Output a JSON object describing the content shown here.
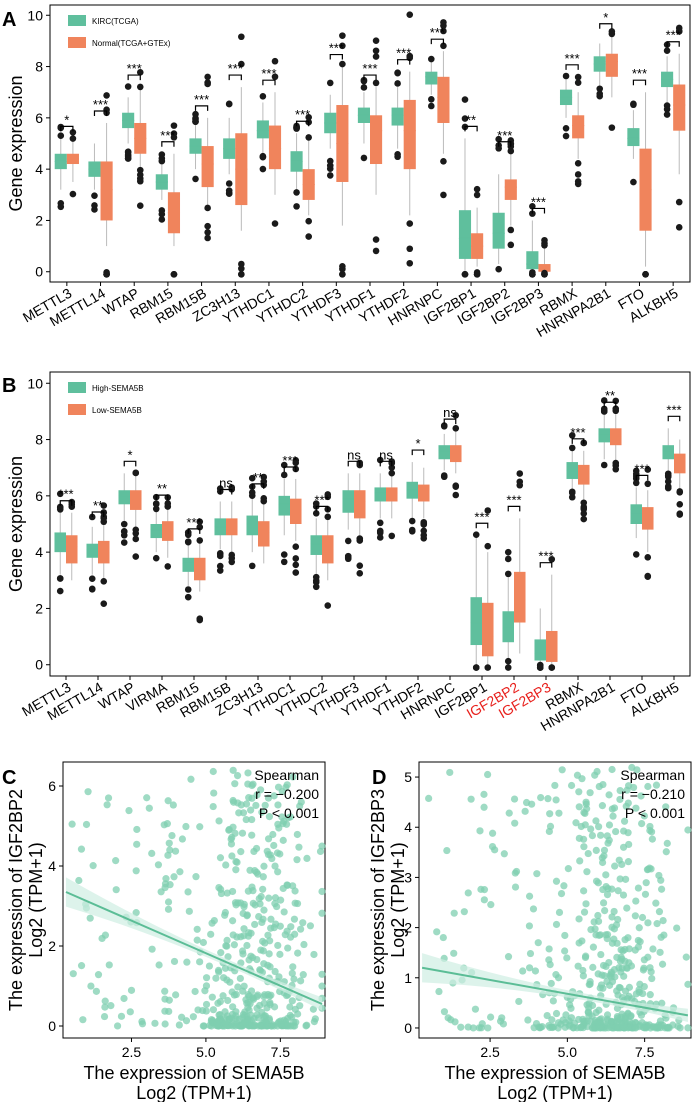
{
  "colors": {
    "green": "#5fbf9d",
    "orange": "#f0845c",
    "scatter": "#7fcfb0",
    "line": "#5bbd96",
    "band": "#cfeee2",
    "red_label": "#e8201c",
    "point": "#1a1a1a"
  },
  "chart_data": [
    {
      "panel": "A",
      "type": "box",
      "ylabel": "Gene expression",
      "ylim": [
        -0.4,
        10.4
      ],
      "yticks": [
        "0",
        "2",
        "4",
        "6",
        "8",
        "10"
      ],
      "legend": [
        "KIRC(TCGA)",
        "Normal(TCGA+GTEx)"
      ],
      "categories": [
        "METTL3",
        "METTL14",
        "WTAP",
        "RBM15",
        "RBM15B",
        "ZC3H13",
        "YTHDC1",
        "YTHDC2",
        "YTHDF3",
        "YTHDF1",
        "YTHDF2",
        "HNRNPC",
        "IGF2BP1",
        "IGF2BP2",
        "IGF2BP3",
        "RBMX",
        "HNRNPA2B1",
        "FTO",
        "ALKBH5"
      ],
      "significance": [
        "*",
        "***",
        "***",
        "***",
        "***",
        "***",
        "***",
        "***",
        "***",
        "***",
        "***",
        "***",
        "**",
        "***",
        "***",
        "***",
        "*",
        "***",
        "***"
      ],
      "series": [
        {
          "name": "KIRC(TCGA)",
          "boxes": [
            [
              3.2,
              4.0,
              4.3,
              4.6,
              5.2
            ],
            [
              3.2,
              3.7,
              4.0,
              4.3,
              5.0
            ],
            [
              5.0,
              5.6,
              5.9,
              6.2,
              6.8
            ],
            [
              2.8,
              3.2,
              3.5,
              3.8,
              4.3
            ],
            [
              4.0,
              4.6,
              4.9,
              5.2,
              5.8
            ],
            [
              3.8,
              4.4,
              4.8,
              5.2,
              6.0
            ],
            [
              4.6,
              5.2,
              5.5,
              5.9,
              6.6
            ],
            [
              3.2,
              3.9,
              4.3,
              4.7,
              5.4
            ],
            [
              4.8,
              5.4,
              5.8,
              6.2,
              6.9
            ],
            [
              5.0,
              5.8,
              6.1,
              6.4,
              7.0
            ],
            [
              4.8,
              5.7,
              6.1,
              6.4,
              7.2
            ],
            [
              6.9,
              7.3,
              7.6,
              7.8,
              8.2
            ],
            [
              0.0,
              0.5,
              1.3,
              2.4,
              5.2
            ],
            [
              0.3,
              0.9,
              1.5,
              2.3,
              3.8
            ],
            [
              0.0,
              0.1,
              0.3,
              0.8,
              2.0
            ],
            [
              6.0,
              6.5,
              6.8,
              7.1,
              7.6
            ],
            [
              7.2,
              7.8,
              8.1,
              8.4,
              8.9
            ],
            [
              4.4,
              4.9,
              5.2,
              5.6,
              6.3
            ],
            [
              6.6,
              7.2,
              7.5,
              7.8,
              8.4
            ]
          ]
        },
        {
          "name": "Normal(TCGA+GTEx)",
          "boxes": [
            [
              3.5,
              4.2,
              4.4,
              4.6,
              5.1
            ],
            [
              1.0,
              2.0,
              3.2,
              4.3,
              5.8
            ],
            [
              4.0,
              4.6,
              5.2,
              5.8,
              7.2
            ],
            [
              1.0,
              1.5,
              2.3,
              3.1,
              4.6
            ],
            [
              2.5,
              3.3,
              4.2,
              4.9,
              6.0
            ],
            [
              1.6,
              2.6,
              4.0,
              5.4,
              7.2
            ],
            [
              3.0,
              4.0,
              4.8,
              5.7,
              7.0
            ],
            [
              2.2,
              2.8,
              3.4,
              4.0,
              5.2
            ],
            [
              1.8,
              3.5,
              5.0,
              6.5,
              8.0
            ],
            [
              3.0,
              4.2,
              5.5,
              6.1,
              7.2
            ],
            [
              2.2,
              4.0,
              5.5,
              6.7,
              7.8
            ],
            [
              4.6,
              5.8,
              6.8,
              7.6,
              8.6
            ],
            [
              0.2,
              0.5,
              1.0,
              1.5,
              2.5
            ],
            [
              1.8,
              2.8,
              3.3,
              3.6,
              4.6
            ],
            [
              0.0,
              0.0,
              0.05,
              0.3,
              1.0
            ],
            [
              4.4,
              5.2,
              5.7,
              6.1,
              7.0
            ],
            [
              6.8,
              7.6,
              8.2,
              8.5,
              9.2
            ],
            [
              0.2,
              1.6,
              3.2,
              4.8,
              7.0
            ],
            [
              3.8,
              5.5,
              6.5,
              7.3,
              8.5
            ]
          ]
        }
      ]
    },
    {
      "panel": "B",
      "type": "box",
      "ylabel": "Gene expression",
      "ylim": [
        -0.4,
        10.4
      ],
      "yticks": [
        "0",
        "2",
        "4",
        "6",
        "8",
        "10"
      ],
      "legend": [
        "High-SEMA5B",
        "Low-SEMA5B"
      ],
      "categories": [
        "METTL3",
        "METTL14",
        "WTAP",
        "VIRMA",
        "RBM15",
        "RBM15B",
        "ZC3H13",
        "YTHDC1",
        "YTHDC2",
        "YTHDF3",
        "YTHDF1",
        "YTHDF2",
        "HNRNPC",
        "IGF2BP1",
        "IGF2BP2",
        "IGF2BP3",
        "RBMX",
        "HNRNPA2B1",
        "FTO",
        "ALKBH5"
      ],
      "highlight_labels": [
        "IGF2BP2",
        "IGF2BP3"
      ],
      "significance": [
        "***",
        "**",
        "*",
        "**",
        "***",
        "ns",
        "**",
        "***",
        "***",
        "ns",
        "ns",
        "*",
        "ns",
        "***",
        "***",
        "***",
        "***",
        "**",
        "***",
        "***"
      ],
      "series": [
        {
          "name": "High-SEMA5B",
          "boxes": [
            [
              3.2,
              4.0,
              4.4,
              4.7,
              5.4
            ],
            [
              3.2,
              3.8,
              4.1,
              4.3,
              4.9
            ],
            [
              5.0,
              5.7,
              6.0,
              6.2,
              6.8
            ],
            [
              4.0,
              4.5,
              4.8,
              5.0,
              5.5
            ],
            [
              2.8,
              3.3,
              3.6,
              3.8,
              4.3
            ],
            [
              4.1,
              4.6,
              4.9,
              5.2,
              5.8
            ],
            [
              4.0,
              4.6,
              5.0,
              5.3,
              6.0
            ],
            [
              4.6,
              5.3,
              5.7,
              6.0,
              6.6
            ],
            [
              3.2,
              3.9,
              4.3,
              4.6,
              5.2
            ],
            [
              4.8,
              5.4,
              5.9,
              6.2,
              6.8
            ],
            [
              5.2,
              5.8,
              6.1,
              6.3,
              6.8
            ],
            [
              5.2,
              5.9,
              6.2,
              6.5,
              7.2
            ],
            [
              6.9,
              7.3,
              7.6,
              7.8,
              8.2
            ],
            [
              0.0,
              0.7,
              1.5,
              2.4,
              4.6
            ],
            [
              0.2,
              0.8,
              1.3,
              1.9,
              3.2
            ],
            [
              0.0,
              0.15,
              0.4,
              0.9,
              2.0
            ],
            [
              6.2,
              6.6,
              6.9,
              7.2,
              7.6
            ],
            [
              7.3,
              7.9,
              8.2,
              8.4,
              8.9
            ],
            [
              4.5,
              5.0,
              5.4,
              5.7,
              6.3
            ],
            [
              6.8,
              7.3,
              7.6,
              7.8,
              8.4
            ]
          ]
        },
        {
          "name": "Low-SEMA5B",
          "boxes": [
            [
              3.0,
              3.6,
              4.2,
              4.6,
              5.4
            ],
            [
              3.0,
              3.6,
              4.0,
              4.4,
              5.0
            ],
            [
              4.8,
              5.5,
              5.9,
              6.2,
              6.8
            ],
            [
              3.8,
              4.4,
              4.8,
              5.1,
              5.6
            ],
            [
              2.6,
              3.0,
              3.4,
              3.8,
              4.4
            ],
            [
              4.0,
              4.6,
              4.9,
              5.2,
              5.8
            ],
            [
              3.6,
              4.2,
              4.7,
              5.1,
              5.8
            ],
            [
              4.4,
              5.0,
              5.5,
              5.9,
              6.6
            ],
            [
              3.0,
              3.6,
              4.1,
              4.6,
              5.2
            ],
            [
              4.6,
              5.2,
              5.8,
              6.2,
              6.8
            ],
            [
              5.2,
              5.8,
              6.1,
              6.3,
              6.8
            ],
            [
              5.2,
              5.8,
              6.2,
              6.4,
              7.0
            ],
            [
              6.8,
              7.2,
              7.5,
              7.8,
              8.3
            ],
            [
              0.0,
              0.3,
              1.0,
              2.2,
              4.0
            ],
            [
              0.4,
              1.5,
              2.3,
              3.3,
              5.2
            ],
            [
              0.0,
              0.1,
              0.35,
              1.2,
              3.2
            ],
            [
              5.8,
              6.4,
              6.8,
              7.1,
              7.6
            ],
            [
              7.2,
              7.8,
              8.1,
              8.4,
              8.9
            ],
            [
              4.0,
              4.8,
              5.2,
              5.6,
              6.2
            ],
            [
              6.2,
              6.8,
              7.2,
              7.5,
              8.0
            ]
          ]
        }
      ]
    },
    {
      "panel": "C",
      "type": "scatter",
      "xlabel_line1": "The expression of SEMA5B",
      "xlabel_line2": "Log2 (TPM+1)",
      "ylabel_line1": "The expression of IGF2BP2",
      "ylabel_line2": "Log2 (TPM+1)",
      "xlim": [
        0.2,
        9.0
      ],
      "ylim": [
        -0.3,
        6.6
      ],
      "xticks": [
        "2.5",
        "5.0",
        "7.5"
      ],
      "yticks": [
        "0",
        "2",
        "4",
        "6"
      ],
      "annotation": [
        "Spearman",
        "r = −0.200",
        "P < 0.001"
      ],
      "fit": {
        "x0": 0.3,
        "y0": 3.35,
        "x1": 8.9,
        "y1": 0.55
      },
      "n_points": 520,
      "x_center": 6.6,
      "x_spread": 1.0,
      "y_low": 0.0,
      "y_high": 6.4
    },
    {
      "panel": "D",
      "type": "scatter",
      "xlabel_line1": "The expression of SEMA5B",
      "xlabel_line2": "Log2 (TPM+1)",
      "ylabel_line1": "The expression of IGF2BP3",
      "ylabel_line2": "Log2 (TPM+1)",
      "xlim": [
        0.2,
        9.0
      ],
      "ylim": [
        -0.2,
        5.3
      ],
      "xticks": [
        "2.5",
        "5.0",
        "7.5"
      ],
      "yticks": [
        "0",
        "1",
        "2",
        "3",
        "4",
        "5"
      ],
      "annotation": [
        "Spearman",
        "r = −0.210",
        "P < 0.001"
      ],
      "fit": {
        "x0": 0.3,
        "y0": 1.2,
        "x1": 8.9,
        "y1": 0.25
      },
      "n_points": 520,
      "x_center": 6.4,
      "x_spread": 1.1,
      "y_low": 0.0,
      "y_high": 5.2
    }
  ]
}
